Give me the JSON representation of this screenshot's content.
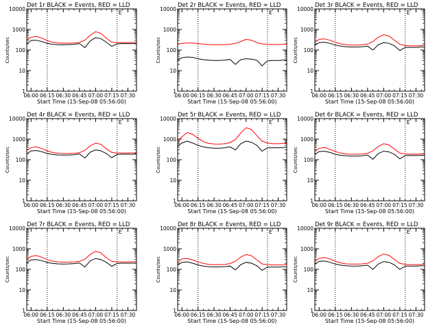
{
  "shared": {
    "ylabel": "Counts/sec",
    "xlabel": "Start Time (15-Sep-08 05:56:00)",
    "x_tick_labels": [
      "06:00",
      "06:15",
      "06:30",
      "06:45",
      "07:00",
      "07:15",
      "07:30"
    ],
    "y_tick_labels": [
      "1",
      "10",
      "100",
      "1000",
      "10000"
    ],
    "y_scale": "log",
    "ylim": [
      1,
      10000
    ],
    "xlim": [
      "05:56",
      "07:38"
    ],
    "marker_label": "E",
    "series_colors": {
      "events": "#000000",
      "lld": "#ff0000"
    }
  },
  "chart_data": [
    {
      "type": "line",
      "title": "Det 1r  BLACK = Events, RED = LLD",
      "x": [
        "05:56",
        "06:00",
        "06:05",
        "06:10",
        "06:15",
        "06:20",
        "06:25",
        "06:30",
        "06:35",
        "06:40",
        "06:45",
        "06:50",
        "06:55",
        "07:00",
        "07:05",
        "07:10",
        "07:15",
        "07:20",
        "07:25",
        "07:30",
        "07:35",
        "07:38"
      ],
      "series": [
        {
          "values": [
            300,
            420,
            460,
            380,
            290,
            240,
            220,
            215,
            215,
            220,
            235,
            300,
            520,
            780,
            640,
            380,
            240,
            230,
            230,
            230,
            235,
            240
          ]
        },
        {
          "values": [
            200,
            290,
            300,
            260,
            210,
            190,
            180,
            180,
            185,
            190,
            205,
            130,
            280,
            400,
            360,
            240,
            150,
            200,
            205,
            205,
            205,
            210
          ]
        }
      ]
    },
    {
      "type": "line",
      "title": "Det 2r  BLACK = Events, RED = LLD",
      "x": [
        "05:56",
        "06:00",
        "06:05",
        "06:10",
        "06:15",
        "06:20",
        "06:25",
        "06:30",
        "06:35",
        "06:40",
        "06:45",
        "06:50",
        "06:55",
        "07:00",
        "07:05",
        "07:10",
        "07:15",
        "07:20",
        "07:25",
        "07:30",
        "07:35",
        "07:38"
      ],
      "series": [
        {
          "values": [
            190,
            210,
            220,
            220,
            205,
            195,
            185,
            180,
            180,
            185,
            190,
            210,
            260,
            330,
            300,
            230,
            200,
            190,
            185,
            185,
            190,
            195
          ]
        },
        {
          "values": [
            32,
            42,
            46,
            44,
            38,
            34,
            32,
            31,
            31,
            32,
            35,
            20,
            34,
            38,
            36,
            32,
            17,
            30,
            31,
            31,
            32,
            33
          ]
        }
      ]
    },
    {
      "type": "line",
      "title": "Det 3r  BLACK = Events, RED = LLD",
      "x": [
        "05:56",
        "06:00",
        "06:05",
        "06:10",
        "06:15",
        "06:20",
        "06:25",
        "06:30",
        "06:35",
        "06:40",
        "06:45",
        "06:50",
        "06:55",
        "07:00",
        "07:05",
        "07:10",
        "07:15",
        "07:20",
        "07:25",
        "07:30",
        "07:35",
        "07:38"
      ],
      "series": [
        {
          "values": [
            230,
            330,
            350,
            300,
            240,
            200,
            180,
            175,
            175,
            180,
            195,
            260,
            420,
            560,
            480,
            300,
            190,
            165,
            160,
            160,
            165,
            170
          ]
        },
        {
          "values": [
            170,
            230,
            240,
            210,
            175,
            155,
            145,
            140,
            140,
            145,
            155,
            100,
            180,
            230,
            210,
            160,
            95,
            135,
            135,
            135,
            140,
            140
          ]
        }
      ]
    },
    {
      "type": "line",
      "title": "Det 4r  BLACK = Events, RED = LLD",
      "x": [
        "05:56",
        "06:00",
        "06:05",
        "06:10",
        "06:15",
        "06:20",
        "06:25",
        "06:30",
        "06:35",
        "06:40",
        "06:45",
        "06:50",
        "06:55",
        "07:00",
        "07:05",
        "07:10",
        "07:15",
        "07:20",
        "07:25",
        "07:30",
        "07:35",
        "07:38"
      ],
      "series": [
        {
          "values": [
            280,
            390,
            420,
            350,
            270,
            225,
            205,
            200,
            200,
            205,
            220,
            285,
            470,
            640,
            560,
            340,
            225,
            210,
            210,
            210,
            215,
            220
          ]
        },
        {
          "values": [
            190,
            270,
            280,
            245,
            200,
            180,
            170,
            168,
            170,
            175,
            190,
            120,
            230,
            300,
            270,
            200,
            125,
            180,
            185,
            185,
            185,
            190
          ]
        }
      ]
    },
    {
      "type": "line",
      "title": "Det 5r  BLACK = Events, RED = LLD",
      "x": [
        "05:56",
        "06:00",
        "06:05",
        "06:10",
        "06:15",
        "06:20",
        "06:25",
        "06:30",
        "06:35",
        "06:40",
        "06:45",
        "06:50",
        "06:55",
        "07:00",
        "07:05",
        "07:10",
        "07:15",
        "07:20",
        "07:25",
        "07:30",
        "07:35",
        "07:38"
      ],
      "series": [
        {
          "values": [
            800,
            1300,
            2100,
            1700,
            1100,
            750,
            620,
            580,
            570,
            600,
            680,
            950,
            2000,
            3600,
            2900,
            1500,
            800,
            650,
            600,
            600,
            620,
            650
          ]
        },
        {
          "values": [
            450,
            650,
            800,
            650,
            500,
            420,
            380,
            360,
            360,
            380,
            420,
            300,
            600,
            800,
            700,
            500,
            260,
            380,
            380,
            380,
            390,
            400
          ]
        }
      ]
    },
    {
      "type": "line",
      "title": "Det 6r  BLACK = Events, RED = LLD",
      "x": [
        "05:56",
        "06:00",
        "06:05",
        "06:10",
        "06:15",
        "06:20",
        "06:25",
        "06:30",
        "06:35",
        "06:40",
        "06:45",
        "06:50",
        "06:55",
        "07:00",
        "07:05",
        "07:10",
        "07:15",
        "07:20",
        "07:25",
        "07:30",
        "07:35",
        "07:38"
      ],
      "series": [
        {
          "values": [
            250,
            360,
            390,
            320,
            250,
            210,
            190,
            185,
            185,
            190,
            205,
            270,
            440,
            600,
            520,
            320,
            210,
            190,
            185,
            185,
            190,
            195
          ]
        },
        {
          "values": [
            180,
            250,
            260,
            225,
            185,
            165,
            155,
            150,
            150,
            155,
            170,
            105,
            200,
            260,
            240,
            180,
            110,
            160,
            160,
            160,
            165,
            165
          ]
        }
      ]
    },
    {
      "type": "line",
      "title": "Det 7r  BLACK = Events, RED = LLD",
      "x": [
        "05:56",
        "06:00",
        "06:05",
        "06:10",
        "06:15",
        "06:20",
        "06:25",
        "06:30",
        "06:35",
        "06:40",
        "06:45",
        "06:50",
        "06:55",
        "07:00",
        "07:05",
        "07:10",
        "07:15",
        "07:20",
        "07:25",
        "07:30",
        "07:35",
        "07:38"
      ],
      "series": [
        {
          "values": [
            300,
            430,
            470,
            390,
            300,
            250,
            230,
            225,
            225,
            230,
            245,
            310,
            530,
            750,
            630,
            370,
            245,
            230,
            230,
            230,
            235,
            240
          ]
        },
        {
          "values": [
            210,
            290,
            300,
            265,
            215,
            195,
            185,
            182,
            185,
            190,
            205,
            130,
            260,
            340,
            300,
            220,
            140,
            195,
            200,
            200,
            200,
            205
          ]
        }
      ]
    },
    {
      "type": "line",
      "title": "Det 8r  BLACK = Events, RED = LLD",
      "x": [
        "05:56",
        "06:00",
        "06:05",
        "06:10",
        "06:15",
        "06:20",
        "06:25",
        "06:30",
        "06:35",
        "06:40",
        "06:45",
        "06:50",
        "06:55",
        "07:00",
        "07:05",
        "07:10",
        "07:15",
        "07:20",
        "07:25",
        "07:30",
        "07:35",
        "07:38"
      ],
      "series": [
        {
          "values": [
            220,
            320,
            340,
            290,
            230,
            195,
            175,
            170,
            170,
            175,
            190,
            250,
            400,
            530,
            460,
            290,
            185,
            170,
            165,
            165,
            170,
            175
          ]
        },
        {
          "values": [
            160,
            220,
            230,
            200,
            165,
            145,
            135,
            132,
            132,
            136,
            145,
            95,
            170,
            220,
            200,
            150,
            90,
            130,
            130,
            130,
            135,
            135
          ]
        }
      ]
    },
    {
      "type": "line",
      "title": "Det 9r  BLACK = Events, RED = LLD",
      "x": [
        "05:56",
        "06:00",
        "06:05",
        "06:10",
        "06:15",
        "06:20",
        "06:25",
        "06:30",
        "06:35",
        "06:40",
        "06:45",
        "06:50",
        "06:55",
        "07:00",
        "07:05",
        "07:10",
        "07:15",
        "07:20",
        "07:25",
        "07:30",
        "07:35",
        "07:38"
      ],
      "series": [
        {
          "values": [
            240,
            350,
            380,
            320,
            250,
            205,
            185,
            180,
            180,
            185,
            200,
            260,
            420,
            560,
            480,
            300,
            195,
            175,
            170,
            170,
            175,
            180
          ]
        },
        {
          "values": [
            175,
            245,
            255,
            220,
            180,
            160,
            150,
            145,
            145,
            150,
            160,
            100,
            180,
            240,
            220,
            165,
            100,
            145,
            145,
            145,
            150,
            150
          ]
        }
      ]
    }
  ]
}
